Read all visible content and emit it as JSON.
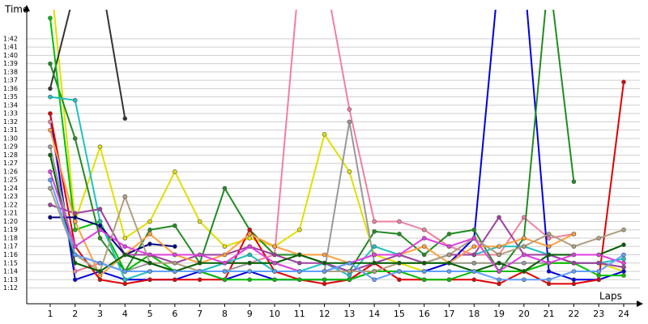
{
  "chart_data": {
    "type": "line",
    "y_title": "Time",
    "x_title": "Laps",
    "x": [
      1,
      2,
      3,
      4,
      5,
      6,
      7,
      8,
      9,
      10,
      11,
      12,
      13,
      14,
      15,
      16,
      17,
      18,
      19,
      20,
      21,
      22,
      23,
      24
    ],
    "xlim": [
      0.06,
      24.65
    ],
    "xticks": [
      1,
      2,
      3,
      4,
      5,
      6,
      7,
      8,
      9,
      10,
      11,
      12,
      13,
      14,
      15,
      16,
      17,
      18,
      19,
      20,
      21,
      22,
      23,
      24
    ],
    "ylim": [
      70.1,
      105.5
    ],
    "grid": true,
    "yticks": [
      {
        "value": 72,
        "label": "1:12"
      },
      {
        "value": 73,
        "label": "1:13"
      },
      {
        "value": 74,
        "label": "1:14"
      },
      {
        "value": 75,
        "label": "1:15"
      },
      {
        "value": 76,
        "label": "1:16"
      },
      {
        "value": 77,
        "label": "1:17"
      },
      {
        "value": 78,
        "label": "1:18"
      },
      {
        "value": 79,
        "label": "1:19"
      },
      {
        "value": 80,
        "label": "1:20"
      },
      {
        "value": 81,
        "label": "1:21"
      },
      {
        "value": 82,
        "label": "1:22"
      },
      {
        "value": 83,
        "label": "1:23"
      },
      {
        "value": 84,
        "label": "1:24"
      },
      {
        "value": 85,
        "label": "1:25"
      },
      {
        "value": 86,
        "label": "1:26"
      },
      {
        "value": 87,
        "label": "1:27"
      },
      {
        "value": 88,
        "label": "1:28"
      },
      {
        "value": 89,
        "label": "1:29"
      },
      {
        "value": 90,
        "label": "1:30"
      },
      {
        "value": 91,
        "label": "1:31"
      },
      {
        "value": 92,
        "label": "1:32"
      },
      {
        "value": 93,
        "label": "1:33"
      },
      {
        "value": 94,
        "label": "1:34"
      },
      {
        "value": 95,
        "label": "1:35"
      },
      {
        "value": 96,
        "label": "1:36"
      },
      {
        "value": 97,
        "label": "1:37"
      },
      {
        "value": 98,
        "label": "1:38"
      },
      {
        "value": 99,
        "label": "1:39"
      },
      {
        "value": 100,
        "label": "1:40"
      },
      {
        "value": 101,
        "label": "1:41"
      },
      {
        "value": 102,
        "label": "1:42"
      }
    ],
    "series": [
      {
        "color": "#e0e000",
        "values": [
          110,
          80,
          89,
          78,
          80,
          86,
          80,
          77,
          78,
          77,
          79,
          90.5,
          86,
          76,
          75,
          74,
          75,
          75,
          75,
          74,
          75,
          75,
          75,
          74
        ]
      },
      {
        "color": "#333333",
        "values": [
          96,
          108,
          110,
          92.4,
          null,
          null,
          null,
          null,
          null,
          null,
          null,
          null,
          null,
          null,
          null,
          null,
          null,
          null,
          null,
          null,
          null,
          null,
          null,
          null
        ]
      },
      {
        "color": "#f080a0",
        "values": [
          92,
          74,
          75,
          74,
          74,
          74,
          74,
          75,
          75,
          76,
          110,
          110,
          93.5,
          80,
          80,
          79,
          77,
          76,
          76,
          80.5,
          78,
          78.5,
          null,
          null
        ]
      },
      {
        "color": "#0000dd",
        "values": [
          93,
          73,
          74,
          73,
          73,
          73,
          74,
          73,
          74,
          73,
          73,
          73,
          73,
          74,
          74,
          74,
          75,
          78,
          110,
          110,
          74,
          73,
          73,
          74
        ]
      },
      {
        "color": "#228b22",
        "values": [
          99,
          90,
          78,
          74,
          79,
          79.5,
          75,
          84,
          79,
          76,
          76,
          75,
          74,
          78.8,
          78.5,
          76,
          78.5,
          79,
          74,
          78,
          110,
          84.8,
          null,
          null
        ]
      },
      {
        "color": "#e00000",
        "values": [
          93,
          77,
          73,
          72.5,
          73,
          73,
          73,
          73,
          79,
          74,
          73,
          72.5,
          73,
          75,
          73,
          73,
          73,
          73,
          72.5,
          74,
          72.5,
          72.5,
          73,
          96.8
        ]
      },
      {
        "color": "#999999",
        "values": [
          89,
          76,
          75,
          74,
          75,
          74,
          74,
          74,
          75,
          75,
          74,
          74,
          92,
          75,
          75,
          75,
          75,
          75,
          75,
          75,
          75,
          75,
          75,
          74.5
        ]
      },
      {
        "color": "#00c000",
        "values": [
          104.5,
          79,
          80,
          74,
          76,
          74,
          74,
          73,
          73,
          73,
          73,
          73,
          73,
          74,
          74,
          73,
          73,
          74,
          74,
          74,
          75,
          75,
          73.5,
          73.5
        ]
      },
      {
        "color": "#20c0c0",
        "values": [
          95,
          94.6,
          80,
          73,
          74,
          74,
          74,
          75,
          76,
          74,
          74,
          75,
          73.5,
          77,
          76,
          75,
          76,
          76,
          77,
          77,
          76,
          75,
          75,
          75.5
        ]
      },
      {
        "color": "#a040a0",
        "values": [
          82,
          81,
          81.5,
          76,
          76,
          75,
          76,
          76,
          77,
          76,
          75,
          75,
          74,
          75,
          76,
          75,
          76,
          76,
          80.5,
          76,
          76,
          75,
          75,
          74.5
        ]
      },
      {
        "color": "#000080",
        "values": [
          80.5,
          80.5,
          79.5,
          76,
          77.3,
          77,
          null,
          null,
          null,
          null,
          null,
          null,
          null,
          null,
          null,
          null,
          null,
          null,
          null,
          null,
          null,
          null,
          null,
          null
        ]
      },
      {
        "color": "#ffa040",
        "values": [
          91,
          80,
          73.5,
          76,
          78.5,
          76,
          75,
          76,
          78.5,
          77,
          76,
          76,
          75,
          76,
          76,
          77,
          75,
          77,
          77,
          78,
          77,
          78.5,
          null,
          null
        ]
      },
      {
        "color": "#b0a080",
        "values": [
          84,
          76,
          74,
          83,
          75,
          75,
          74,
          74,
          74,
          74,
          74,
          74,
          74,
          74,
          75,
          75,
          76,
          78,
          76,
          77,
          78.5,
          77,
          78,
          79
        ]
      },
      {
        "color": "#006000",
        "values": [
          88,
          75,
          74,
          76,
          75,
          74,
          75,
          75,
          75,
          75,
          76,
          75,
          75,
          75,
          75,
          75,
          75,
          74,
          75,
          74,
          76,
          76,
          76,
          77.2
        ]
      },
      {
        "color": "#e040e0",
        "values": [
          86,
          77,
          79,
          77,
          76,
          76,
          76,
          75,
          77,
          75,
          74,
          74,
          75,
          76,
          76,
          78,
          77,
          78,
          74,
          76,
          75,
          76,
          76,
          75
        ]
      },
      {
        "color": "#60a0ff",
        "values": [
          85,
          76,
          75,
          74,
          74,
          74,
          74,
          74,
          74,
          74,
          74,
          74,
          75,
          73,
          74,
          74,
          74,
          74,
          73,
          73,
          73,
          74,
          74,
          76
        ]
      }
    ]
  }
}
